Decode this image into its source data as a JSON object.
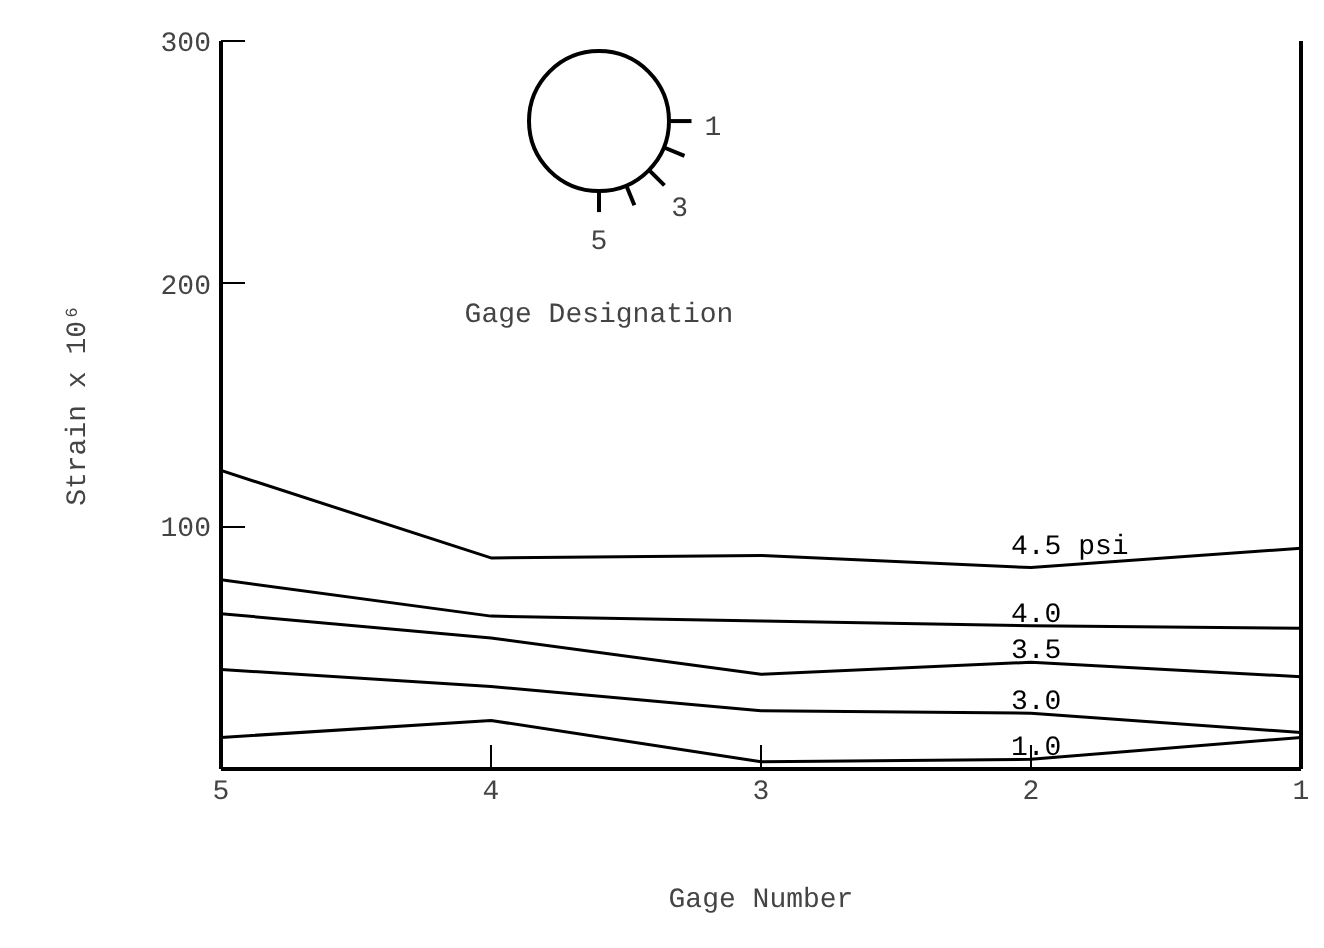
{
  "chart_data": {
    "type": "line",
    "xlabel": "Gage Number",
    "ylabel": "Strain x 10⁶",
    "categories": [
      "5",
      "4",
      "3",
      "2",
      "1"
    ],
    "series": [
      {
        "name": "4.5 psi",
        "color": "#000000",
        "values": [
          123,
          87,
          88,
          83,
          91
        ]
      },
      {
        "name": "4.0",
        "color": "#000000",
        "values": [
          78,
          63,
          61,
          59,
          58
        ]
      },
      {
        "name": "3.5",
        "color": "#000000",
        "values": [
          64,
          54,
          39,
          44,
          38
        ]
      },
      {
        "name": "3.0",
        "color": "#000000",
        "values": [
          41,
          34,
          24,
          23,
          15
        ]
      },
      {
        "name": "1.0",
        "color": "#000000",
        "values": [
          13,
          20,
          3,
          4,
          13
        ]
      }
    ],
    "ylim": [
      0,
      300
    ],
    "yticks": [
      100,
      200,
      300
    ],
    "grid": false,
    "marker": "none",
    "line_style": "solid",
    "annotations": [
      "Gage Designation",
      "1",
      "3",
      "5"
    ]
  }
}
